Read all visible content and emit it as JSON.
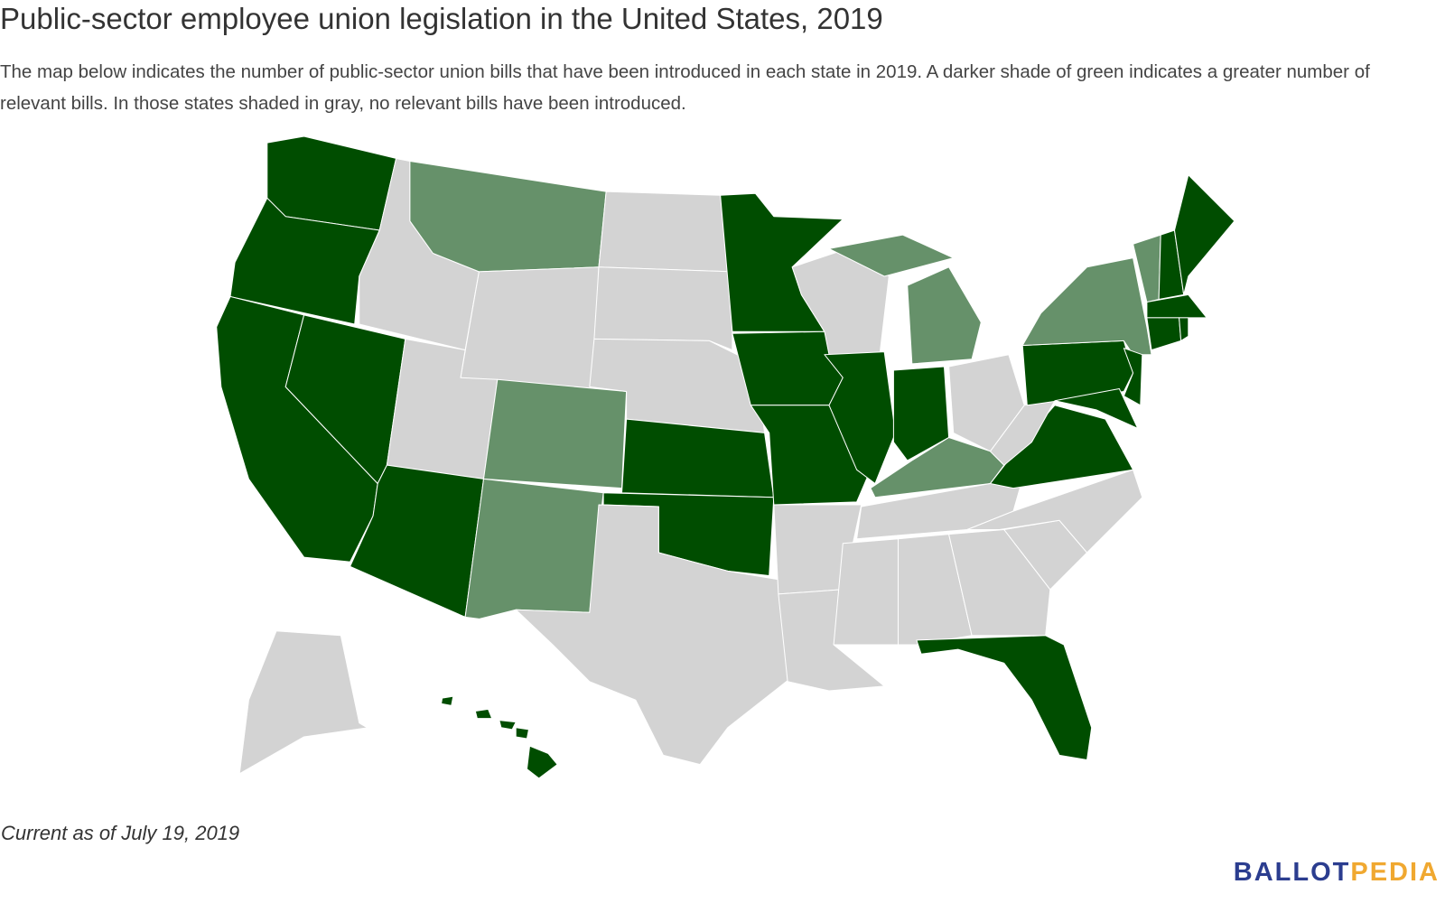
{
  "header": {
    "title": "Public-sector employee union legislation in the United States, 2019",
    "description": "The map below indicates the number of public-sector union bills that have been introduced in each state in 2019. A darker shade of green indicates a greater number of relevant bills. In those states shaded in gray, no relevant bills have been introduced."
  },
  "footer": {
    "note": "Current as of July 19, 2019",
    "logo": [
      "BALLOT",
      "PEDIA"
    ]
  }
}
